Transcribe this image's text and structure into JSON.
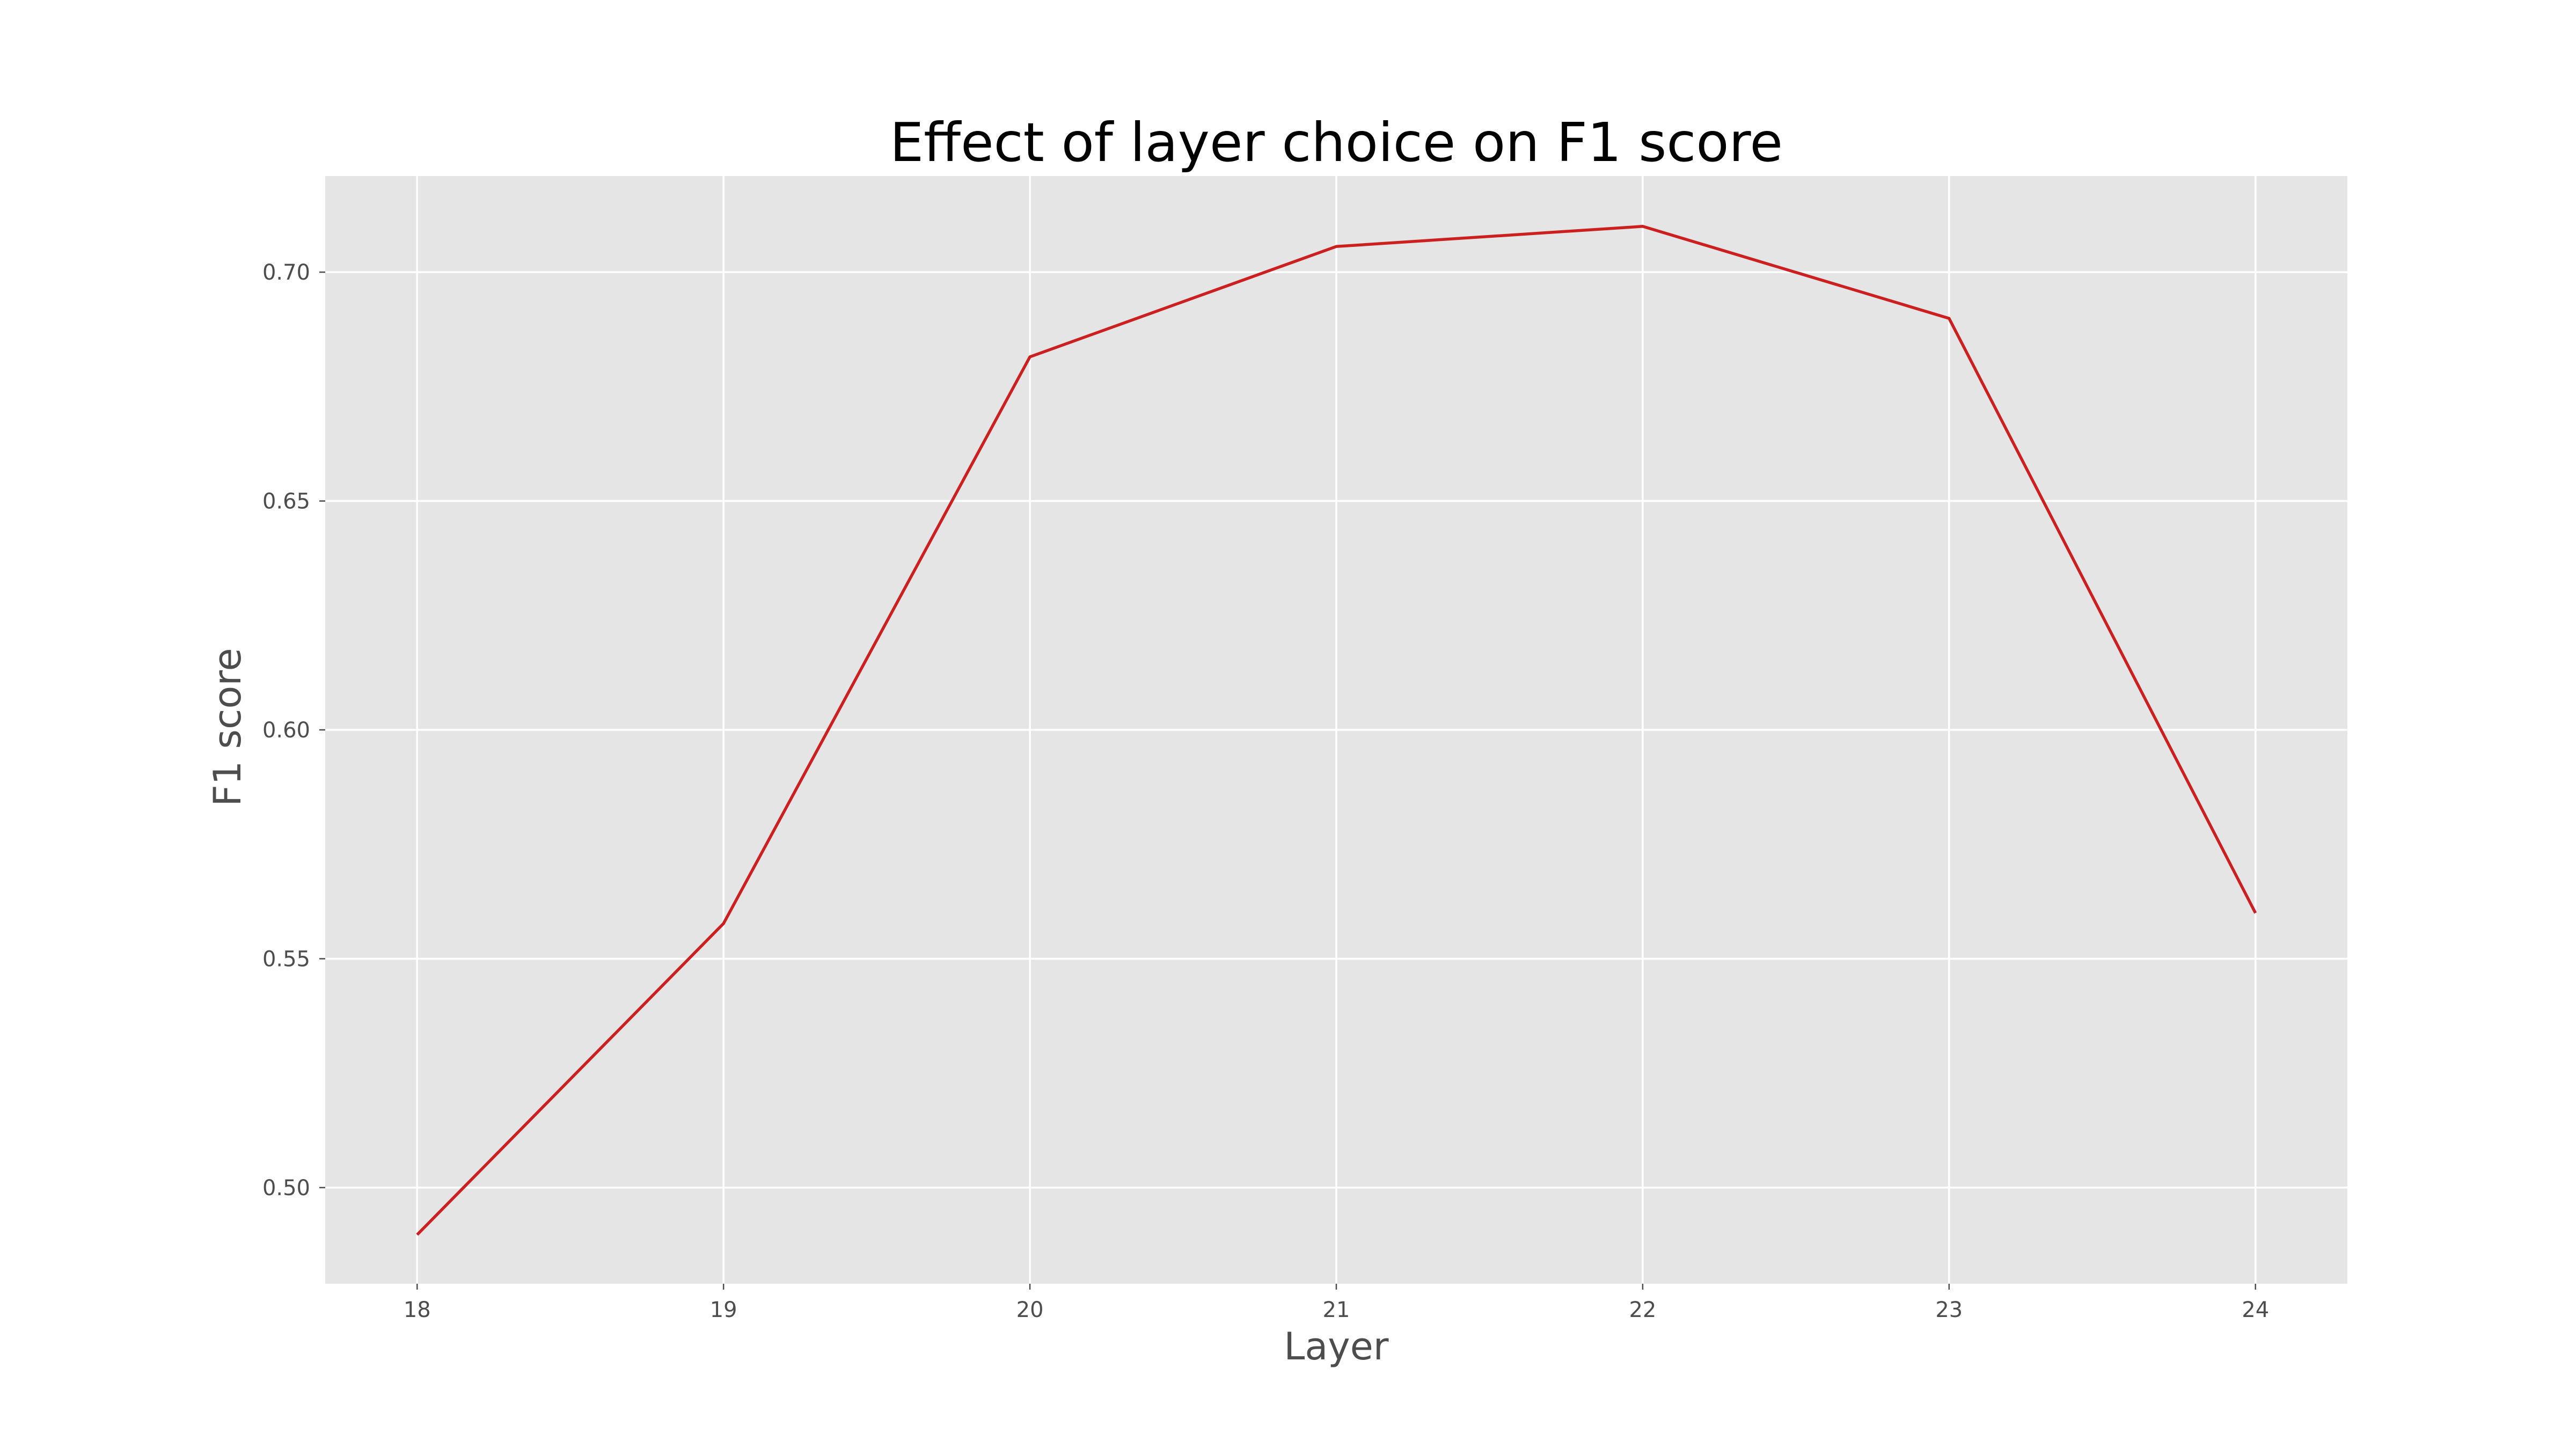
{
  "chart_data": {
    "type": "line",
    "title": "Effect of layer choice on F1 score",
    "xlabel": "Layer",
    "ylabel": "F1 score",
    "x": [
      18,
      19,
      20,
      21,
      22,
      23,
      24
    ],
    "series": [
      {
        "values": [
          0.4897,
          0.5577,
          0.6815,
          0.7056,
          0.71,
          0.6899,
          0.56
        ]
      }
    ],
    "xlim": [
      17.7,
      24.3
    ],
    "ylim": [
      0.479,
      0.721
    ],
    "xticks": [
      18,
      19,
      20,
      21,
      22,
      23,
      24
    ],
    "xtick_labels": [
      "18",
      "19",
      "20",
      "21",
      "22",
      "23",
      "24"
    ],
    "yticks": [
      0.5,
      0.55,
      0.6,
      0.65,
      0.7
    ],
    "ytick_labels": [
      "0.50",
      "0.55",
      "0.60",
      "0.65",
      "0.70"
    ],
    "grid": true,
    "colors": {
      "line": "#cc1f1f",
      "plot_background": "#e5e5e5",
      "grid": "#ffffff",
      "text": "#4d4d4d"
    }
  }
}
